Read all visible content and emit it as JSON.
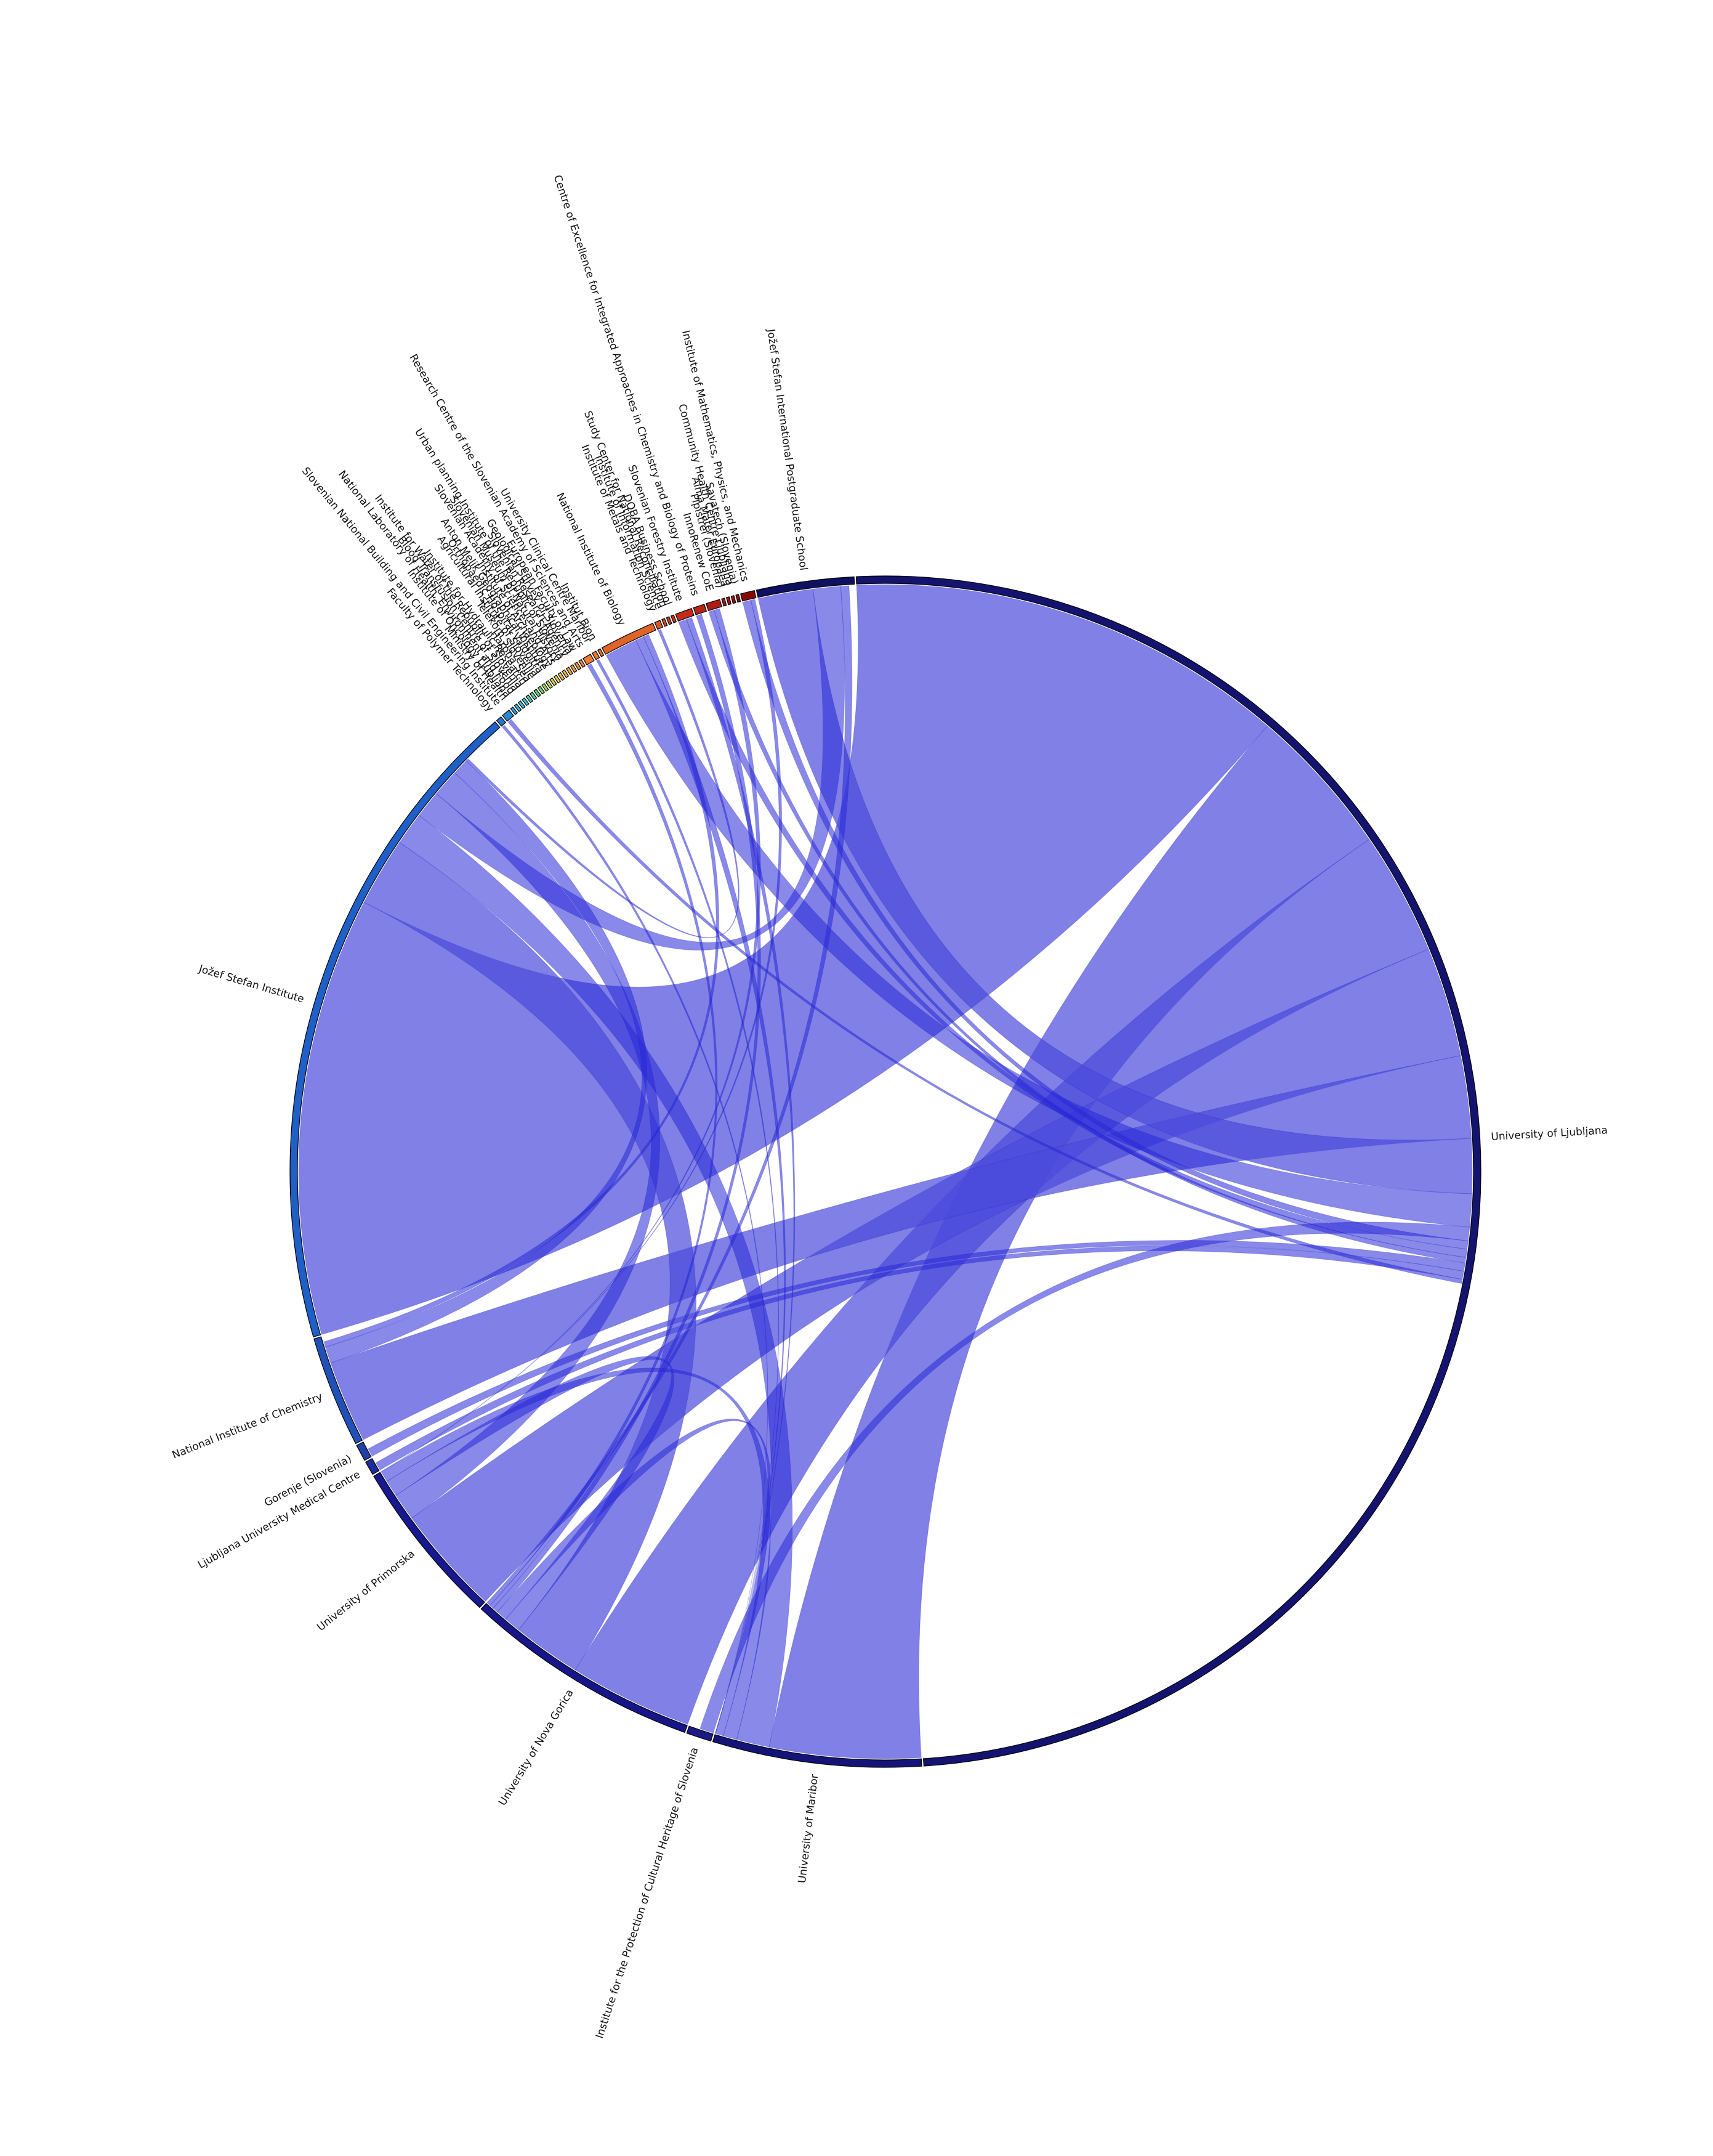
{
  "chart_data": {
    "type": "chord",
    "title": "",
    "nodes": [
      {
        "name": "University of Ljubljana",
        "weight": 1320,
        "color": "#141470"
      },
      {
        "name": "University of Maribor",
        "weight": 150,
        "color": "#141478"
      },
      {
        "name": "Institute for the Protection of Cultural Heritage of Slovenia",
        "weight": 18,
        "color": "#1a1a86"
      },
      {
        "name": "University of Nova Gorica",
        "weight": 170,
        "color": "#16168a"
      },
      {
        "name": "University of Primorska",
        "weight": 120,
        "color": "#181890"
      },
      {
        "name": "Ljubljana University Medical Centre",
        "weight": 10,
        "color": "#1c2c9a"
      },
      {
        "name": "Gorenje (Slovenia)",
        "weight": 12,
        "color": "#2040a8"
      },
      {
        "name": "National Institute of Chemistry",
        "weight": 80,
        "color": "#2050b8"
      },
      {
        "name": "Jožef Stefan Institute",
        "weight": 480,
        "color": "#1f5fc8"
      },
      {
        "name": "Faculty of Polymer Technology",
        "weight": 4,
        "color": "#2478cc"
      },
      {
        "name": "Slovenian National Building and Civil Engineering Institute",
        "weight": 6,
        "color": "#2a88d0"
      },
      {
        "name": "Ministry of Health",
        "weight": 2,
        "color": "#3aa0d8"
      },
      {
        "name": "Institute of Oncology Ljubljana",
        "weight": 2,
        "color": "#40b0d8"
      },
      {
        "name": "National Laboratory of Health, Environment and Food",
        "weight": 2,
        "color": "#44bcd0"
      },
      {
        "name": "Blood Transfusion Centre of Slovenia",
        "weight": 2,
        "color": "#48c4c4"
      },
      {
        "name": "Institute for Water of the Republic of Slovenia",
        "weight": 2,
        "color": "#50c8b0"
      },
      {
        "name": "Institute for Hydraulic Research",
        "weight": 2,
        "color": "#5ccc98"
      },
      {
        "name": "Harpha Sea",
        "weight": 2,
        "color": "#6cd080"
      },
      {
        "name": "Telekom Slovenije",
        "weight": 2,
        "color": "#84d46c"
      },
      {
        "name": "Agricultural Institute of Slovenia",
        "weight": 2,
        "color": "#a0d860"
      },
      {
        "name": "Orthopaedic Hospital Valdoltra",
        "weight": 2,
        "color": "#bcd858"
      },
      {
        "name": "Anton Melik Geographical Institute",
        "weight": 2,
        "color": "#d4d454"
      },
      {
        "name": "Institute of Archaeology",
        "weight": 2,
        "color": "#e4cc50"
      },
      {
        "name": "Slovenian Academy of Sciences and Arts",
        "weight": 2,
        "color": "#ecc04c"
      },
      {
        "name": "Slovenian Museum of Natural History",
        "weight": 2,
        "color": "#f0b448"
      },
      {
        "name": "Urban planning Institute of the Republic of Slovenia",
        "weight": 2,
        "color": "#f4a844"
      },
      {
        "name": "Slovenian Research Agency",
        "weight": 2,
        "color": "#f49c40"
      },
      {
        "name": "Geological Survey of Slovenia",
        "weight": 2,
        "color": "#f4903c"
      },
      {
        "name": "European Faculty of Law",
        "weight": 2,
        "color": "#f48438"
      },
      {
        "name": "Research Centre of the Slovenian Academy of Sciences and Arts",
        "weight": 6,
        "color": "#f07c34"
      },
      {
        "name": "University Clinical Centre Maribor",
        "weight": 3,
        "color": "#ec7430"
      },
      {
        "name": "Institut Bion",
        "weight": 2,
        "color": "#e86c2c"
      },
      {
        "name": "National Institute of Biology",
        "weight": 40,
        "color": "#e06428"
      },
      {
        "name": "Institute of Metals and Technology",
        "weight": 4,
        "color": "#d85824"
      },
      {
        "name": "Institute of Information Science",
        "weight": 2,
        "color": "#d04c20"
      },
      {
        "name": "Study Center for National Reconciliation",
        "weight": 2,
        "color": "#c8401c"
      },
      {
        "name": "DOBA Business School",
        "weight": 2,
        "color": "#c03418"
      },
      {
        "name": "Slovenian Forestry Institute",
        "weight": 12,
        "color": "#c42c18"
      },
      {
        "name": "Centre of Excellence for Integrated Approaches in Chemistry and Biology of Proteins",
        "weight": 8,
        "color": "#b82418"
      },
      {
        "name": "InnoRenew CoE",
        "weight": 10,
        "color": "#b01c14"
      },
      {
        "name": "Pipistrel (Slovenia)",
        "weight": 2,
        "color": "#a81814"
      },
      {
        "name": "Alma Mater Europaea",
        "weight": 2,
        "color": "#a01410"
      },
      {
        "name": "Community Health Centre Ljubljana",
        "weight": 2,
        "color": "#981010"
      },
      {
        "name": "Savatech (Slovenia)",
        "weight": 2,
        "color": "#900c0c"
      },
      {
        "name": "Institute of Mathematics, Physics, and Mechanics",
        "weight": 10,
        "color": "#880808"
      },
      {
        "name": "Jožef Stefan International Postgraduate School",
        "weight": 70,
        "color": "#101060"
      }
    ],
    "links": [
      {
        "source": "University of Ljubljana",
        "target": "Jožef Stefan Institute",
        "value": 320
      },
      {
        "source": "University of Ljubljana",
        "target": "University of Maribor",
        "value": 110
      },
      {
        "source": "University of Ljubljana",
        "target": "University of Nova Gorica",
        "value": 90
      },
      {
        "source": "University of Ljubljana",
        "target": "University of Primorska",
        "value": 80
      },
      {
        "source": "University of Ljubljana",
        "target": "National Institute of Chemistry",
        "value": 60
      },
      {
        "source": "University of Ljubljana",
        "target": "Jožef Stefan International Postgraduate School",
        "value": 40
      },
      {
        "source": "University of Ljubljana",
        "target": "National Institute of Biology",
        "value": 24
      },
      {
        "source": "University of Ljubljana",
        "target": "Institute for the Protection of Cultural Heritage of Slovenia",
        "value": 10
      },
      {
        "source": "University of Ljubljana",
        "target": "Institute of Mathematics, Physics, and Mechanics",
        "value": 6
      },
      {
        "source": "University of Ljubljana",
        "target": "Slovenian Forestry Institute",
        "value": 6
      },
      {
        "source": "University of Ljubljana",
        "target": "InnoRenew CoE",
        "value": 4
      },
      {
        "source": "University of Ljubljana",
        "target": "Gorenje (Slovenia)",
        "value": 6
      },
      {
        "source": "University of Ljubljana",
        "target": "Ljubljana University Medical Centre",
        "value": 6
      },
      {
        "source": "Jožef Stefan Institute",
        "target": "University of Nova Gorica",
        "value": 50
      },
      {
        "source": "Jožef Stefan Institute",
        "target": "University of Maribor",
        "value": 24
      },
      {
        "source": "Jožef Stefan Institute",
        "target": "Jožef Stefan International Postgraduate School",
        "value": 20
      },
      {
        "source": "Jožef Stefan Institute",
        "target": "University of Primorska",
        "value": 20
      },
      {
        "source": "Jožef Stefan Institute",
        "target": "National Institute of Chemistry",
        "value": 12
      },
      {
        "source": "University of Nova Gorica",
        "target": "University of Primorska",
        "value": 12
      },
      {
        "source": "University of Maribor",
        "target": "University of Primorska",
        "value": 10
      },
      {
        "source": "University of Nova Gorica",
        "target": "University of Maribor",
        "value": 8
      },
      {
        "source": "National Institute of Biology",
        "target": "University of Maribor",
        "value": 6
      },
      {
        "source": "National Institute of Biology",
        "target": "National Institute of Chemistry",
        "value": 4
      },
      {
        "source": "Slovenian Forestry Institute",
        "target": "University of Maribor",
        "value": 4
      },
      {
        "source": "Centre of Excellence for Integrated Approaches in Chemistry and Biology of Proteins",
        "target": "University of Nova Gorica",
        "value": 4
      },
      {
        "source": "InnoRenew CoE",
        "target": "University of Primorska",
        "value": 4
      },
      {
        "source": "Institute of Mathematics, Physics, and Mechanics",
        "target": "University of Primorska",
        "value": 3
      },
      {
        "source": "Research Centre of the Slovenian Academy of Sciences and Arts",
        "target": "University of Nova Gorica",
        "value": 3
      },
      {
        "source": "Institute of Metals and Technology",
        "target": "Jožef Stefan Institute",
        "value": 2
      },
      {
        "source": "University Clinical Centre Maribor",
        "target": "University of Maribor",
        "value": 2
      },
      {
        "source": "Slovenian National Building and Civil Engineering Institute",
        "target": "University of Ljubljana",
        "value": 3
      },
      {
        "source": "Faculty of Polymer Technology",
        "target": "University of Maribor",
        "value": 2
      },
      {
        "source": "Jožef Stefan International Postgraduate School",
        "target": "University of Nova Gorica",
        "value": 6
      }
    ]
  }
}
